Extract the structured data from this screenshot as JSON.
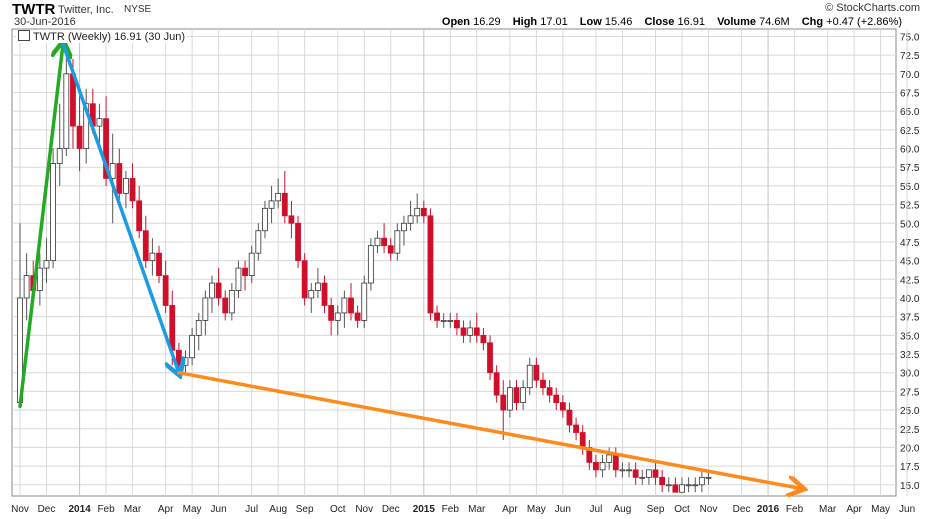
{
  "header": {
    "symbol": "TWTR",
    "company": "Twitter, Inc.",
    "exchange": "NYSE",
    "date": "30-Jun-2016",
    "credit": "© StockCharts.com",
    "stats": [
      {
        "label": "Open",
        "value": "16.29"
      },
      {
        "label": "High",
        "value": "17.01"
      },
      {
        "label": "Low",
        "value": "15.46"
      },
      {
        "label": "Close",
        "value": "16.91"
      },
      {
        "label": "Volume",
        "value": "74.6M"
      },
      {
        "label": "Chg",
        "value": "+0.47 (+2.86%)"
      }
    ]
  },
  "legend_text": "TWTR (Weekly) 16.91 (30 Jun)",
  "colors": {
    "up": "#ffffff",
    "up_stroke": "#333333",
    "down": "#d0102a",
    "grid": "#d8d8d8",
    "arrow_green": "#22aa22",
    "arrow_blue": "#1c9be0",
    "arrow_orange": "#ff8a1c"
  },
  "chart_data": {
    "type": "candlestick",
    "y_range": [
      13.5,
      76
    ],
    "y_ticks": [
      "15.0",
      "17.5",
      "20.0",
      "22.5",
      "25.0",
      "27.5",
      "30.0",
      "32.5",
      "35.0",
      "37.5",
      "40.0",
      "42.5",
      "45.0",
      "47.5",
      "50.0",
      "52.5",
      "55.0",
      "57.5",
      "60.0",
      "62.5",
      "65.0",
      "67.5",
      "70.0",
      "72.5",
      "75.0"
    ],
    "x_labels": [
      {
        "label": "Nov",
        "week": 0,
        "bold": false
      },
      {
        "label": "Dec",
        "week": 4,
        "bold": false
      },
      {
        "label": "2014",
        "week": 9,
        "bold": true
      },
      {
        "label": "Feb",
        "week": 13,
        "bold": false
      },
      {
        "label": "Mar",
        "week": 17,
        "bold": false
      },
      {
        "label": "Apr",
        "week": 22,
        "bold": false
      },
      {
        "label": "May",
        "week": 26,
        "bold": false
      },
      {
        "label": "Jun",
        "week": 30,
        "bold": false
      },
      {
        "label": "Jul",
        "week": 35,
        "bold": false
      },
      {
        "label": "Aug",
        "week": 39,
        "bold": false
      },
      {
        "label": "Sep",
        "week": 43,
        "bold": false
      },
      {
        "label": "Oct",
        "week": 48,
        "bold": false
      },
      {
        "label": "Nov",
        "week": 52,
        "bold": false
      },
      {
        "label": "Dec",
        "week": 56,
        "bold": false
      },
      {
        "label": "2015",
        "week": 61,
        "bold": true
      },
      {
        "label": "Feb",
        "week": 65,
        "bold": false
      },
      {
        "label": "Mar",
        "week": 69,
        "bold": false
      },
      {
        "label": "Apr",
        "week": 74,
        "bold": false
      },
      {
        "label": "May",
        "week": 78,
        "bold": false
      },
      {
        "label": "Jun",
        "week": 82,
        "bold": false
      },
      {
        "label": "Jul",
        "week": 87,
        "bold": false
      },
      {
        "label": "Aug",
        "week": 91,
        "bold": false
      },
      {
        "label": "Sep",
        "week": 96,
        "bold": false
      },
      {
        "label": "Oct",
        "week": 100,
        "bold": false
      },
      {
        "label": "Nov",
        "week": 104,
        "bold": false
      },
      {
        "label": "Dec",
        "week": 109,
        "bold": false
      },
      {
        "label": "2016",
        "week": 113,
        "bold": true
      },
      {
        "label": "Feb",
        "week": 117,
        "bold": false
      },
      {
        "label": "Mar",
        "week": 122,
        "bold": false
      },
      {
        "label": "Apr",
        "week": 126,
        "bold": false
      },
      {
        "label": "May",
        "week": 130,
        "bold": false
      },
      {
        "label": "Jun",
        "week": 134,
        "bold": false
      }
    ],
    "candles": [
      [
        0,
        26,
        50,
        26,
        40
      ],
      [
        1,
        40,
        46,
        37,
        43
      ],
      [
        2,
        43,
        45,
        40,
        41
      ],
      [
        3,
        41,
        46,
        39,
        44
      ],
      [
        4,
        44,
        48,
        42,
        45
      ],
      [
        5,
        45,
        60,
        44,
        58
      ],
      [
        6,
        58,
        66,
        55,
        60
      ],
      [
        7,
        60,
        74,
        59,
        70
      ],
      [
        8,
        70,
        72,
        60,
        63
      ],
      [
        9,
        63,
        67,
        57,
        60
      ],
      [
        10,
        60,
        68,
        58,
        66
      ],
      [
        11,
        66,
        68,
        62,
        63
      ],
      [
        12,
        63,
        66,
        60,
        64
      ],
      [
        13,
        64,
        67,
        55,
        56
      ],
      [
        14,
        56,
        62,
        50,
        58
      ],
      [
        15,
        58,
        60,
        53,
        54
      ],
      [
        16,
        54,
        57,
        52,
        56
      ],
      [
        17,
        56,
        58,
        52,
        53
      ],
      [
        18,
        53,
        55,
        48,
        49
      ],
      [
        19,
        49,
        51,
        44,
        45
      ],
      [
        20,
        45,
        48,
        43,
        46
      ],
      [
        21,
        46,
        47,
        42,
        43
      ],
      [
        22,
        43,
        45,
        38,
        39
      ],
      [
        23,
        39,
        41,
        31,
        33
      ],
      [
        24,
        33,
        34,
        30,
        31
      ],
      [
        25,
        31,
        33,
        30,
        32
      ],
      [
        26,
        32,
        36,
        31,
        35
      ],
      [
        27,
        35,
        38,
        33,
        37
      ],
      [
        28,
        37,
        41,
        35,
        40
      ],
      [
        29,
        40,
        43,
        38,
        42
      ],
      [
        30,
        42,
        44,
        39,
        40
      ],
      [
        31,
        40,
        41,
        37,
        38
      ],
      [
        32,
        38,
        42,
        37,
        41
      ],
      [
        33,
        41,
        45,
        40,
        44
      ],
      [
        34,
        44,
        45,
        41,
        43
      ],
      [
        35,
        43,
        47,
        42,
        46
      ],
      [
        36,
        46,
        50,
        45,
        49
      ],
      [
        37,
        49,
        53,
        48,
        52
      ],
      [
        38,
        52,
        55,
        50,
        53
      ],
      [
        39,
        53,
        56,
        52,
        54
      ],
      [
        40,
        54,
        57,
        50,
        51
      ],
      [
        41,
        51,
        53,
        48,
        50
      ],
      [
        42,
        50,
        51,
        44,
        45
      ],
      [
        43,
        45,
        46,
        39,
        40
      ],
      [
        44,
        40,
        42,
        38,
        41
      ],
      [
        45,
        41,
        44,
        40,
        42
      ],
      [
        46,
        42,
        43,
        38,
        39
      ],
      [
        47,
        39,
        40,
        35,
        37
      ],
      [
        48,
        37,
        39,
        35,
        38
      ],
      [
        49,
        38,
        41,
        36,
        40
      ],
      [
        50,
        40,
        42,
        37,
        38
      ],
      [
        51,
        38,
        39,
        36,
        37
      ],
      [
        52,
        37,
        43,
        36,
        42
      ],
      [
        53,
        42,
        48,
        41,
        47
      ],
      [
        54,
        47,
        49,
        46,
        48
      ],
      [
        55,
        48,
        50,
        46,
        47
      ],
      [
        56,
        47,
        48,
        45,
        46
      ],
      [
        57,
        46,
        50,
        45,
        49
      ],
      [
        58,
        49,
        51,
        47,
        50
      ],
      [
        59,
        50,
        53,
        49,
        51
      ],
      [
        60,
        51,
        54,
        50,
        52
      ],
      [
        61,
        52,
        53,
        50,
        51
      ],
      [
        62,
        51,
        52,
        37,
        38
      ],
      [
        63,
        38,
        39,
        36,
        37
      ],
      [
        64,
        37,
        38,
        36,
        37
      ],
      [
        65,
        37,
        38,
        36,
        37
      ],
      [
        66,
        37,
        38,
        35,
        36
      ],
      [
        67,
        36,
        37,
        34,
        35
      ],
      [
        68,
        35,
        37,
        34,
        36
      ],
      [
        69,
        36,
        38,
        34,
        35
      ],
      [
        70,
        35,
        36,
        33,
        34
      ],
      [
        71,
        34,
        35,
        29,
        30
      ],
      [
        72,
        30,
        31,
        26,
        27
      ],
      [
        73,
        27,
        29,
        21,
        25
      ],
      [
        74,
        25,
        29,
        24,
        28
      ],
      [
        75,
        28,
        29,
        25,
        26
      ],
      [
        76,
        26,
        29,
        25,
        28
      ],
      [
        77,
        28,
        32,
        27,
        31
      ],
      [
        78,
        31,
        32,
        28,
        29
      ],
      [
        79,
        29,
        30,
        27,
        28
      ],
      [
        80,
        28,
        29,
        26,
        27
      ],
      [
        81,
        27,
        28,
        25,
        26
      ],
      [
        82,
        26,
        27,
        24,
        25
      ],
      [
        83,
        25,
        26,
        22,
        23
      ],
      [
        84,
        23,
        24,
        21,
        22
      ],
      [
        85,
        22,
        23,
        19,
        20
      ],
      [
        86,
        20,
        21,
        17,
        18
      ],
      [
        87,
        18,
        19,
        16,
        17
      ],
      [
        88,
        17,
        19,
        16,
        18
      ],
      [
        89,
        18,
        20,
        17,
        19
      ],
      [
        90,
        19,
        20,
        16,
        17
      ],
      [
        91,
        17,
        18,
        16,
        17
      ],
      [
        92,
        17,
        18,
        16,
        17
      ],
      [
        93,
        17,
        18,
        15,
        16
      ],
      [
        94,
        16,
        17,
        15,
        16
      ],
      [
        95,
        16,
        17,
        15,
        17
      ],
      [
        96,
        17,
        18,
        15,
        16
      ],
      [
        97,
        16,
        17,
        14,
        15
      ],
      [
        98,
        15,
        16,
        14,
        15
      ],
      [
        99,
        15,
        16,
        14,
        14
      ],
      [
        100,
        14,
        16,
        14,
        15
      ],
      [
        101,
        15,
        16,
        14,
        15
      ],
      [
        102,
        15,
        16,
        14,
        15
      ],
      [
        103,
        15,
        17,
        14,
        16
      ],
      [
        104,
        16,
        17,
        15,
        16
      ]
    ],
    "arrows": [
      {
        "color": "green",
        "from": {
          "week": 0,
          "price": 25.5
        },
        "to": {
          "week": 6.5,
          "price": 74
        }
      },
      {
        "color": "blue",
        "from": {
          "week": 6.5,
          "price": 74
        },
        "to": {
          "week": 24,
          "price": 30
        }
      },
      {
        "color": "orange",
        "from": {
          "week": 24,
          "price": 30
        },
        "to": {
          "week": 118,
          "price": 14.5
        }
      }
    ]
  }
}
